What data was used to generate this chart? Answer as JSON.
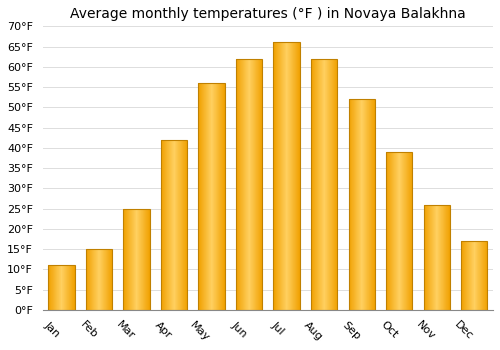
{
  "title": "Average monthly temperatures (°F ) in Novaya Balakhna",
  "months": [
    "Jan",
    "Feb",
    "Mar",
    "Apr",
    "May",
    "Jun",
    "Jul",
    "Aug",
    "Sep",
    "Oct",
    "Nov",
    "Dec"
  ],
  "values": [
    11,
    15,
    25,
    42,
    56,
    62,
    66,
    62,
    52,
    39,
    26,
    17
  ],
  "bar_color_center": "#FFD060",
  "bar_color_edge": "#F0A000",
  "ylim": [
    0,
    70
  ],
  "yticks": [
    0,
    5,
    10,
    15,
    20,
    25,
    30,
    35,
    40,
    45,
    50,
    55,
    60,
    65,
    70
  ],
  "ytick_labels": [
    "0°F",
    "5°F",
    "10°F",
    "15°F",
    "20°F",
    "25°F",
    "30°F",
    "35°F",
    "40°F",
    "45°F",
    "50°F",
    "55°F",
    "60°F",
    "65°F",
    "70°F"
  ],
  "background_color": "#ffffff",
  "grid_color": "#dddddd",
  "title_fontsize": 10,
  "tick_fontsize": 8,
  "font_family": "DejaVu Sans",
  "bar_width": 0.7,
  "xlabel_rotation": -45
}
